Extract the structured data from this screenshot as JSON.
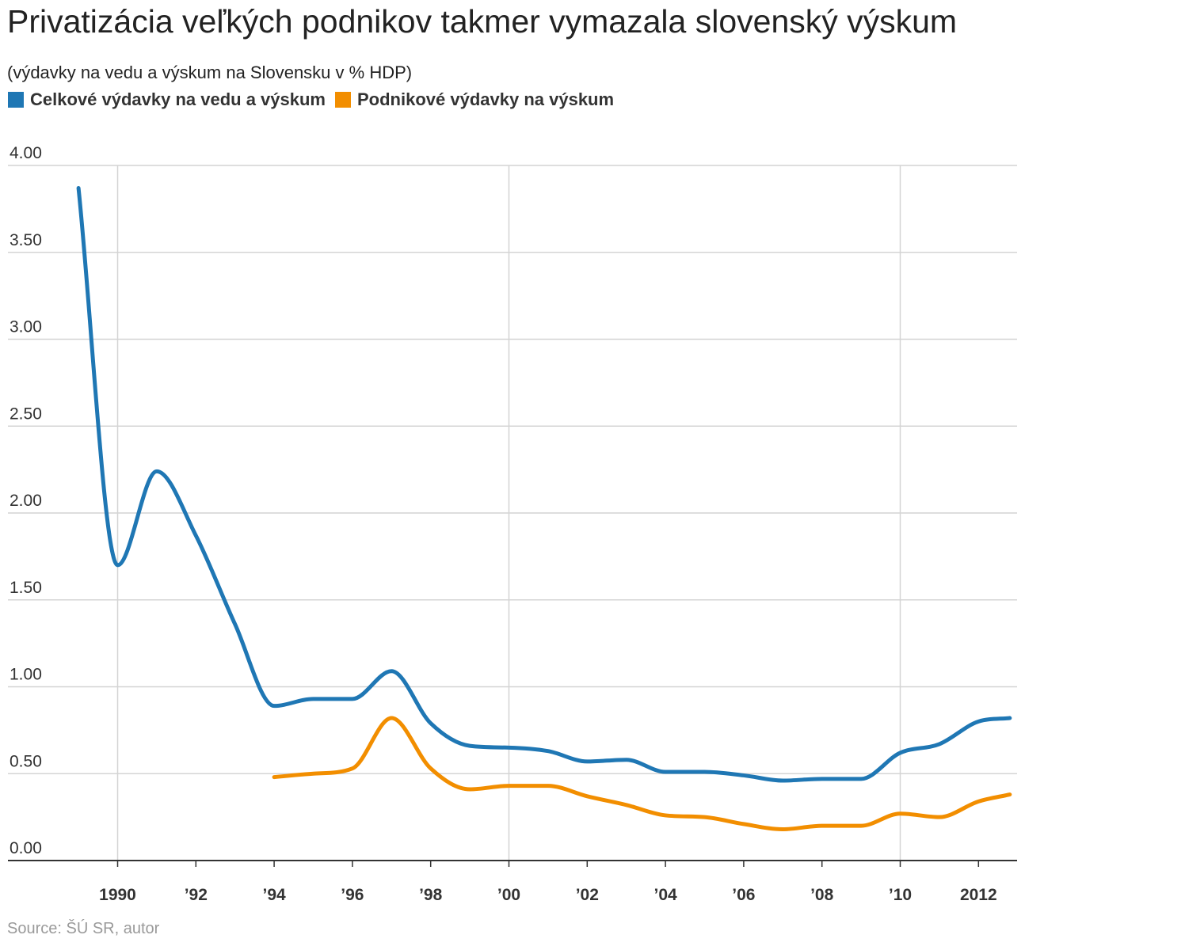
{
  "title": "Privatizácia veľkých podnikov takmer vymazala slovenský výskum",
  "subtitle": "(výdavky na vedu a výskum na Slovensku v % HDP)",
  "source": "Source: ŠÚ SR, autor",
  "colors": {
    "total": "#1f77b4",
    "business": "#f28e00",
    "grid": "#d4d4d4",
    "axis": "#333333"
  },
  "chart_data": {
    "type": "line",
    "ylim": [
      0,
      4
    ],
    "xlim": [
      1989,
      2012.8
    ],
    "y_ticks": [
      0,
      0.5,
      1,
      1.5,
      2,
      2.5,
      3,
      3.5,
      4
    ],
    "y_tick_labels": [
      "0.00",
      "0.50",
      "1.00",
      "1.50",
      "2.00",
      "2.50",
      "3.00",
      "3.50",
      "4.00"
    ],
    "x_ticks": [
      1990,
      1992,
      1994,
      1996,
      1998,
      2000,
      2002,
      2004,
      2006,
      2008,
      2010,
      2012
    ],
    "x_tick_labels": [
      "1990",
      "’92",
      "’94",
      "’96",
      "’98",
      "’00",
      "’02",
      "’04",
      "’06",
      "’08",
      "’10",
      "2012"
    ],
    "x_gridlines": [
      1990,
      2000,
      2010
    ],
    "series": [
      {
        "name": "Celkové výdavky na vedu a výskum",
        "color": "#1f77b4",
        "x": [
          1989,
          1990,
          1991,
          1992,
          1993,
          1994,
          1995,
          1996,
          1997,
          1998,
          1999,
          2000,
          2001,
          2002,
          2003,
          2004,
          2005,
          2006,
          2007,
          2008,
          2009,
          2010,
          2011,
          2012,
          2012.8
        ],
        "values": [
          3.87,
          1.7,
          2.24,
          1.87,
          1.36,
          0.89,
          0.93,
          0.93,
          1.09,
          0.79,
          0.66,
          0.65,
          0.63,
          0.57,
          0.58,
          0.51,
          0.51,
          0.49,
          0.46,
          0.47,
          0.47,
          0.62,
          0.67,
          0.8,
          0.82
        ]
      },
      {
        "name": "Podnikové výdavky na výskum",
        "color": "#f28e00",
        "x": [
          1994,
          1995,
          1996,
          1997,
          1998,
          1999,
          2000,
          2001,
          2002,
          2003,
          2004,
          2005,
          2006,
          2007,
          2008,
          2009,
          2010,
          2011,
          2012,
          2012.8
        ],
        "values": [
          0.48,
          0.5,
          0.53,
          0.82,
          0.53,
          0.41,
          0.43,
          0.43,
          0.37,
          0.32,
          0.26,
          0.25,
          0.21,
          0.18,
          0.2,
          0.2,
          0.27,
          0.25,
          0.34,
          0.38
        ]
      }
    ]
  }
}
